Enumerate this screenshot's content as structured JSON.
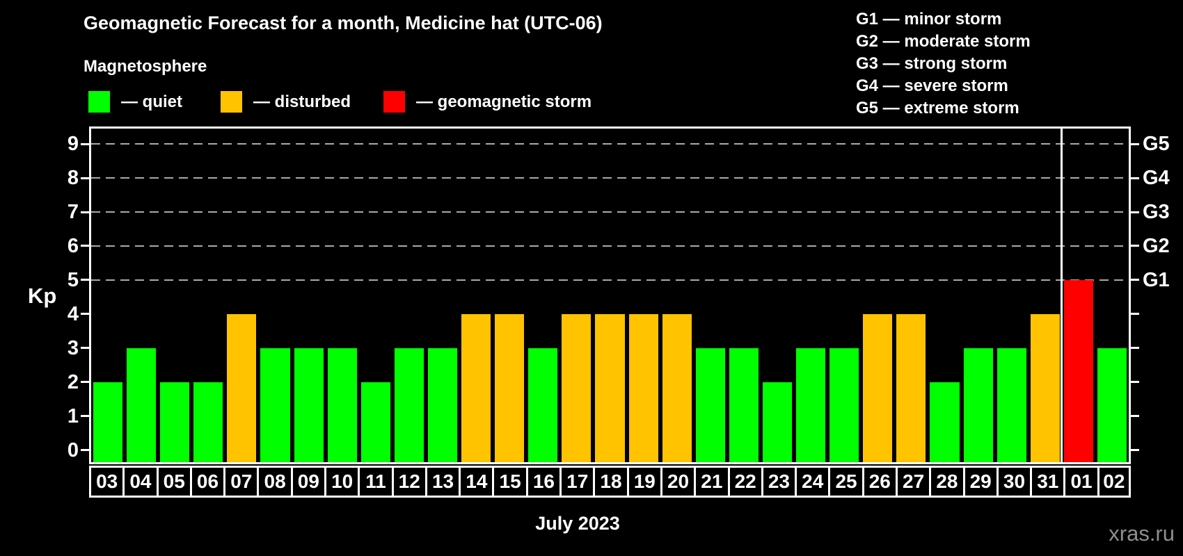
{
  "title": "Geomagnetic Forecast for a month, Medicine hat (UTC-06)",
  "subtitle": "Magnetosphere",
  "legend": {
    "items": [
      {
        "state": "quiet",
        "label": "— quiet"
      },
      {
        "state": "disturbed",
        "label": "— disturbed"
      },
      {
        "state": "storm",
        "label": "— geomagnetic storm"
      }
    ]
  },
  "storm_scale_legend": [
    "G1 — minor storm",
    "G2 — moderate storm",
    "G3 — strong storm",
    "G4 — severe storm",
    "G5 — extreme storm"
  ],
  "watermark": "xras.ru",
  "chart_data": {
    "type": "bar",
    "title": "Geomagnetic Forecast for a month, Medicine hat (UTC-06)",
    "xlabel": "July 2023",
    "ylabel": "Kp",
    "ylim": [
      0,
      9
    ],
    "yticks": [
      0,
      1,
      2,
      3,
      4,
      5,
      6,
      7,
      8,
      9
    ],
    "gridline_levels": [
      5,
      6,
      7,
      8,
      9
    ],
    "grid_style": "dashed",
    "legend_position": "top",
    "right_ticks": [
      {
        "kp": 5,
        "label": "G1"
      },
      {
        "kp": 6,
        "label": "G2"
      },
      {
        "kp": 7,
        "label": "G3"
      },
      {
        "kp": 8,
        "label": "G4"
      },
      {
        "kp": 9,
        "label": "G5"
      }
    ],
    "categories": [
      "03",
      "04",
      "05",
      "06",
      "07",
      "08",
      "09",
      "10",
      "11",
      "12",
      "13",
      "14",
      "15",
      "16",
      "17",
      "18",
      "19",
      "20",
      "21",
      "22",
      "23",
      "24",
      "25",
      "26",
      "27",
      "28",
      "29",
      "30",
      "31",
      "01",
      "02"
    ],
    "values": [
      2,
      3,
      2,
      2,
      4,
      3,
      3,
      3,
      2,
      3,
      3,
      4,
      4,
      3,
      4,
      4,
      4,
      4,
      3,
      3,
      2,
      3,
      3,
      4,
      4,
      2,
      3,
      3,
      4,
      5,
      3
    ],
    "states": [
      "quiet",
      "quiet",
      "quiet",
      "quiet",
      "disturbed",
      "quiet",
      "quiet",
      "quiet",
      "quiet",
      "quiet",
      "quiet",
      "disturbed",
      "disturbed",
      "quiet",
      "disturbed",
      "disturbed",
      "disturbed",
      "disturbed",
      "quiet",
      "quiet",
      "quiet",
      "quiet",
      "quiet",
      "disturbed",
      "disturbed",
      "quiet",
      "quiet",
      "quiet",
      "disturbed",
      "storm",
      "quiet"
    ],
    "month_separator_after_index": 28,
    "colors": {
      "quiet": "#00ff00",
      "disturbed": "#ffc300",
      "storm": "#ff0000",
      "axis": "#ffffff",
      "grid": "#aaaaaa",
      "background": "#000000"
    }
  }
}
